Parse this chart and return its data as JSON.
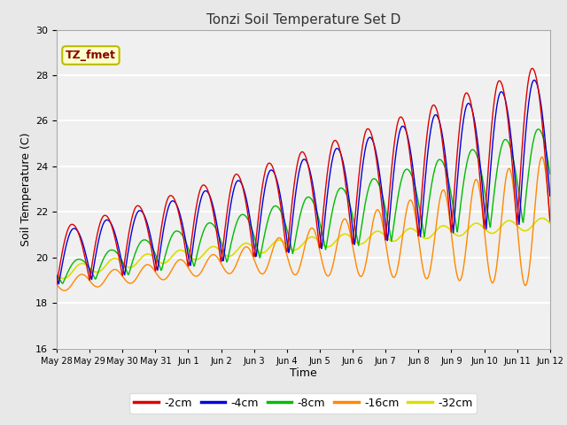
{
  "title": "Tonzi Soil Temperature Set D",
  "xlabel": "Time",
  "ylabel": "Soil Temperature (C)",
  "ylim": [
    16,
    30
  ],
  "yticks": [
    16,
    18,
    20,
    22,
    24,
    26,
    28,
    30
  ],
  "colors": {
    "-2cm": "#dd0000",
    "-4cm": "#0000dd",
    "-8cm": "#00bb00",
    "-16cm": "#ff8800",
    "-32cm": "#dddd00"
  },
  "legend_labels": [
    "-2cm",
    "-4cm",
    "-8cm",
    "-16cm",
    "-32cm"
  ],
  "annotation_text": "TZ_fmet",
  "annotation_bg": "#ffffcc",
  "annotation_border": "#bbbb00",
  "annotation_color": "#880000",
  "fig_bg": "#e8e8e8",
  "plot_bg": "#f0f0f0",
  "grid_color": "#ffffff",
  "xtick_labels": [
    "May 28",
    "May 29",
    "May 30",
    "May 31",
    "Jun 1",
    "Jun 2",
    "Jun 3",
    "Jun 4",
    "Jun 5",
    "Jun 6",
    "Jun 7",
    "Jun 8",
    "Jun 9",
    "Jun 10",
    "Jun 11",
    "Jun 12"
  ],
  "n_days": 15,
  "ppd": 48,
  "figsize": [
    6.4,
    4.8
  ],
  "dpi": 100
}
